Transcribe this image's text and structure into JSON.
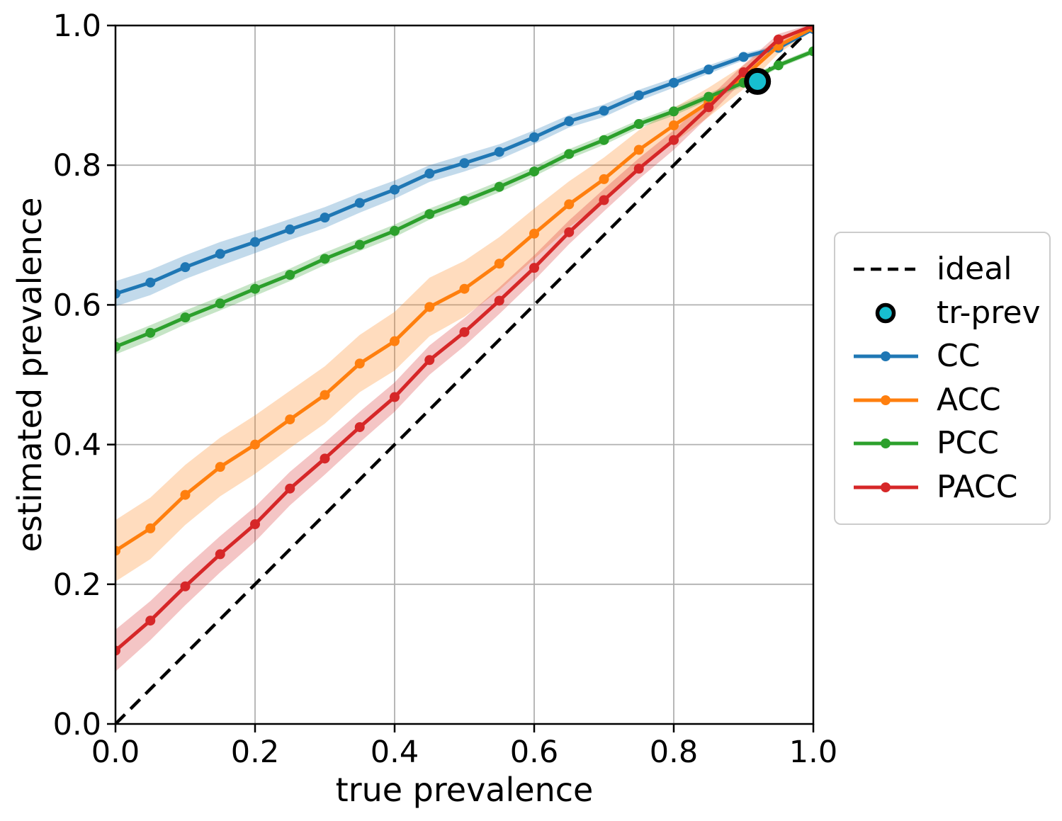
{
  "chart_data": {
    "type": "line",
    "title": "",
    "xlabel": "true prevalence",
    "ylabel": "estimated prevalence",
    "xlim": [
      0.0,
      1.0
    ],
    "ylim": [
      0.0,
      1.0
    ],
    "x_ticks": [
      0.0,
      0.2,
      0.4,
      0.6,
      0.8,
      1.0
    ],
    "y_ticks": [
      0.0,
      0.2,
      0.4,
      0.6,
      0.8,
      1.0
    ],
    "grid": true,
    "grid_color": "#b0b0b0",
    "axes_color": "#000000",
    "legend_position": "outside-right",
    "x": [
      0.0,
      0.05,
      0.1,
      0.15,
      0.2,
      0.25,
      0.3,
      0.35,
      0.4,
      0.45,
      0.5,
      0.55,
      0.6,
      0.65,
      0.7,
      0.75,
      0.8,
      0.85,
      0.9,
      0.95,
      1.0
    ],
    "ideal": {
      "label": "ideal",
      "style": "dashed",
      "color": "#000000",
      "from": [
        0.0,
        0.0
      ],
      "to": [
        1.0,
        1.0
      ]
    },
    "tr_prev": {
      "label": "tr-prev",
      "x": 0.92,
      "y": 0.92,
      "fill": "#17becf",
      "edge": "#000000"
    },
    "series": [
      {
        "name": "CC",
        "color": "#1f77b4",
        "values": [
          0.616,
          0.632,
          0.654,
          0.673,
          0.69,
          0.708,
          0.725,
          0.746,
          0.765,
          0.788,
          0.803,
          0.819,
          0.84,
          0.863,
          0.878,
          0.9,
          0.918,
          0.937,
          0.955,
          0.968,
          0.995
        ],
        "band_halfwidth": [
          0.018,
          0.018,
          0.017,
          0.017,
          0.016,
          0.015,
          0.015,
          0.014,
          0.013,
          0.012,
          0.012,
          0.011,
          0.01,
          0.009,
          0.009,
          0.008,
          0.007,
          0.006,
          0.005,
          0.004,
          0.003
        ]
      },
      {
        "name": "ACC",
        "color": "#ff7f0e",
        "values": [
          0.248,
          0.28,
          0.328,
          0.368,
          0.4,
          0.436,
          0.471,
          0.516,
          0.548,
          0.597,
          0.623,
          0.659,
          0.702,
          0.744,
          0.78,
          0.822,
          0.857,
          0.89,
          0.926,
          0.971,
          0.997
        ],
        "band_halfwidth": [
          0.044,
          0.044,
          0.043,
          0.042,
          0.042,
          0.041,
          0.041,
          0.041,
          0.042,
          0.042,
          0.04,
          0.038,
          0.036,
          0.033,
          0.031,
          0.028,
          0.025,
          0.021,
          0.017,
          0.011,
          0.004
        ]
      },
      {
        "name": "PCC",
        "color": "#2ca02c",
        "values": [
          0.54,
          0.56,
          0.582,
          0.602,
          0.623,
          0.643,
          0.666,
          0.686,
          0.706,
          0.73,
          0.749,
          0.769,
          0.791,
          0.816,
          0.836,
          0.859,
          0.877,
          0.898,
          0.918,
          0.943,
          0.963
        ],
        "band_halfwidth": [
          0.011,
          0.011,
          0.01,
          0.01,
          0.01,
          0.009,
          0.009,
          0.009,
          0.009,
          0.008,
          0.008,
          0.008,
          0.007,
          0.007,
          0.007,
          0.006,
          0.006,
          0.005,
          0.005,
          0.004,
          0.004
        ]
      },
      {
        "name": "PACC",
        "color": "#d62728",
        "values": [
          0.105,
          0.148,
          0.197,
          0.243,
          0.286,
          0.337,
          0.38,
          0.425,
          0.468,
          0.521,
          0.561,
          0.606,
          0.653,
          0.704,
          0.75,
          0.795,
          0.836,
          0.883,
          0.933,
          0.98,
          1.0
        ],
        "band_halfwidth": [
          0.03,
          0.028,
          0.027,
          0.026,
          0.025,
          0.024,
          0.023,
          0.022,
          0.021,
          0.021,
          0.02,
          0.019,
          0.018,
          0.017,
          0.016,
          0.015,
          0.014,
          0.013,
          0.011,
          0.008,
          0.003
        ]
      }
    ],
    "legend": [
      {
        "label": "ideal",
        "type": "dashed-line",
        "color": "#000000"
      },
      {
        "label": "tr-prev",
        "type": "circle-marker",
        "color": "#17becf"
      },
      {
        "label": "CC",
        "type": "line-marker",
        "color": "#1f77b4"
      },
      {
        "label": "ACC",
        "type": "line-marker",
        "color": "#ff7f0e"
      },
      {
        "label": "PCC",
        "type": "line-marker",
        "color": "#2ca02c"
      },
      {
        "label": "PACC",
        "type": "line-marker",
        "color": "#d62728"
      }
    ]
  }
}
